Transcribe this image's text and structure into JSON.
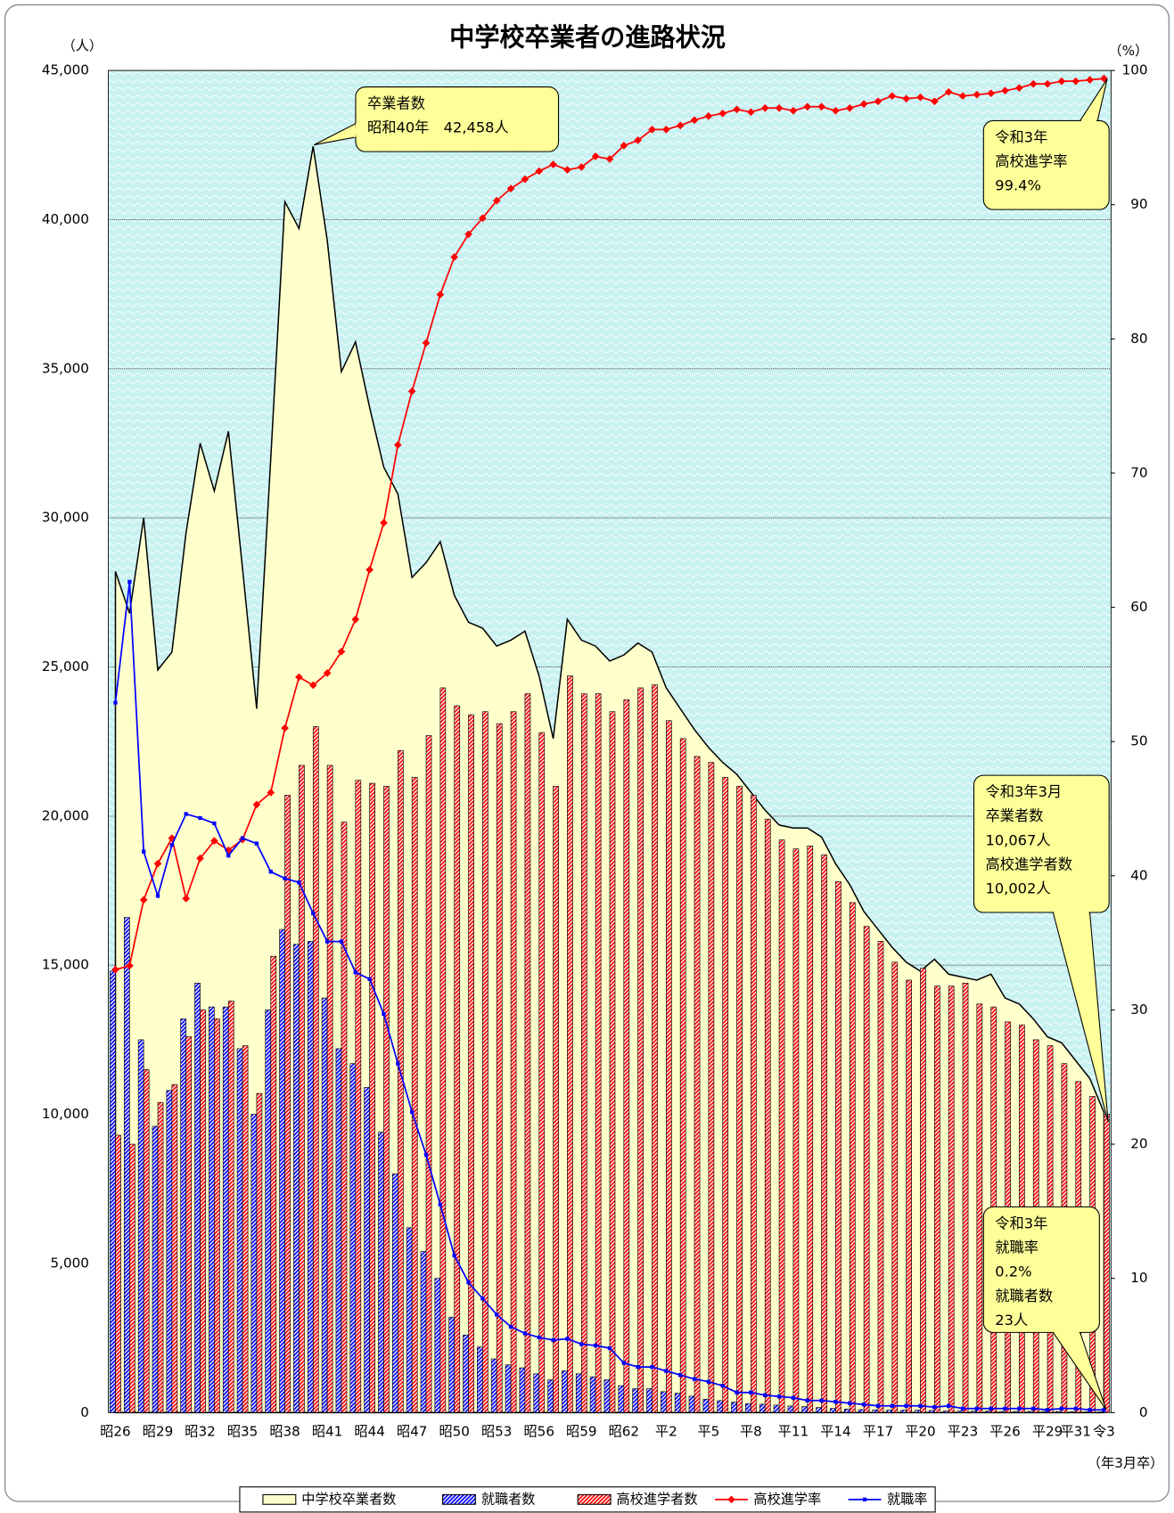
{
  "chart_data": {
    "type": "combo",
    "title": "中学校卒業者の進路状況",
    "y_label": "（人）",
    "y2_label": "（%）",
    "x_note": "（年3月卒）",
    "categories": [
      "昭26",
      null,
      null,
      "昭29",
      null,
      null,
      "昭32",
      null,
      null,
      "昭35",
      null,
      null,
      "昭38",
      null,
      null,
      "昭41",
      null,
      null,
      "昭44",
      null,
      null,
      "昭47",
      null,
      null,
      "昭50",
      null,
      null,
      "昭53",
      null,
      null,
      "昭56",
      null,
      null,
      "昭59",
      null,
      null,
      "昭62",
      null,
      null,
      "平2",
      null,
      null,
      "平5",
      null,
      null,
      "平8",
      null,
      null,
      "平11",
      null,
      null,
      "平14",
      null,
      null,
      "平17",
      null,
      null,
      "平20",
      null,
      null,
      "平23",
      null,
      null,
      "平26",
      null,
      null,
      "平29",
      null,
      "平31",
      null,
      "令3"
    ],
    "series": [
      {
        "name": "中学校卒業者数",
        "type": "area",
        "color": "#ffffcc",
        "values": [
          28200,
          26800,
          30000,
          24900,
          25500,
          29500,
          32500,
          30900,
          32900,
          28300,
          23600,
          32000,
          40600,
          39700,
          42458,
          39300,
          34900,
          35900,
          33700,
          31700,
          30800,
          28000,
          28500,
          29200,
          27400,
          26500,
          26300,
          25700,
          25900,
          26200,
          24700,
          22600,
          26600,
          25900,
          25700,
          25200,
          25400,
          25800,
          25500,
          24300,
          23600,
          22900,
          22300,
          21800,
          21400,
          20800,
          20200,
          19700,
          19600,
          19600,
          19300,
          18400,
          17700,
          16800,
          16200,
          15600,
          15100,
          14800,
          15200,
          14700,
          14600,
          14500,
          14700,
          13900,
          13700,
          13200,
          12600,
          12400,
          11800,
          11200,
          10067
        ]
      },
      {
        "name": "就職者数",
        "type": "bar",
        "color": "#0000ff",
        "values": [
          14800,
          16600,
          12500,
          9600,
          10800,
          13200,
          14400,
          13600,
          13600,
          12200,
          10000,
          13500,
          16200,
          15700,
          15800,
          13900,
          12200,
          11700,
          10900,
          9400,
          8000,
          6200,
          5400,
          4500,
          3200,
          2600,
          2200,
          1800,
          1600,
          1500,
          1300,
          1100,
          1400,
          1300,
          1200,
          1100,
          900,
          800,
          800,
          700,
          650,
          550,
          450,
          400,
          350,
          300,
          280,
          250,
          220,
          200,
          170,
          140,
          120,
          100,
          90,
          80,
          80,
          80,
          70,
          50,
          50,
          50,
          50,
          40,
          40,
          40,
          40,
          40,
          30,
          30,
          23
        ]
      },
      {
        "name": "高校進学者数",
        "type": "bar",
        "color": "#ff0000",
        "values": [
          9300,
          9000,
          11500,
          10400,
          11000,
          12600,
          13500,
          13200,
          13800,
          12300,
          10700,
          15300,
          20700,
          21700,
          23000,
          21700,
          19800,
          21200,
          21100,
          21000,
          22200,
          21300,
          22700,
          24300,
          23700,
          23400,
          23500,
          23100,
          23500,
          24100,
          22800,
          21000,
          24700,
          24100,
          24100,
          23500,
          23900,
          24300,
          24400,
          23200,
          22600,
          22000,
          21800,
          21300,
          21000,
          20700,
          19900,
          19200,
          18900,
          19000,
          18700,
          17800,
          17100,
          16300,
          15800,
          15100,
          14500,
          14900,
          14300,
          14300,
          14400,
          13700,
          13600,
          13100,
          13000,
          12500,
          12300,
          11700,
          11100,
          10600,
          10002
        ]
      },
      {
        "name": "高校進学率",
        "type": "line",
        "axis": "y2",
        "marker": "diamond",
        "color": "#ff0000",
        "values": [
          33.0,
          33.3,
          38.2,
          40.9,
          42.8,
          38.3,
          41.3,
          42.6,
          41.9,
          42.7,
          45.3,
          46.2,
          51.0,
          54.8,
          54.2,
          55.1,
          56.7,
          59.1,
          62.8,
          66.3,
          72.1,
          76.1,
          79.7,
          83.3,
          86.1,
          87.8,
          89.0,
          90.3,
          91.2,
          91.9,
          92.5,
          93.0,
          92.6,
          92.8,
          93.6,
          93.4,
          94.4,
          94.8,
          95.6,
          95.6,
          95.9,
          96.3,
          96.6,
          96.8,
          97.1,
          96.9,
          97.2,
          97.2,
          97.0,
          97.3,
          97.3,
          97.0,
          97.2,
          97.5,
          97.7,
          98.1,
          97.9,
          98.0,
          97.7,
          98.4,
          98.1,
          98.2,
          98.3,
          98.5,
          98.7,
          99.0,
          99.0,
          99.2,
          99.2,
          99.3,
          99.4
        ]
      },
      {
        "name": "就職率",
        "type": "line",
        "axis": "y2",
        "marker": "square",
        "color": "#0000ff",
        "values": [
          52.9,
          61.9,
          41.8,
          38.5,
          42.3,
          44.6,
          44.3,
          43.9,
          41.5,
          42.8,
          42.4,
          40.3,
          39.8,
          39.5,
          37.2,
          35.1,
          35.1,
          32.8,
          32.3,
          29.7,
          26.0,
          22.4,
          19.2,
          15.5,
          11.7,
          9.7,
          8.5,
          7.3,
          6.4,
          5.9,
          5.6,
          5.4,
          5.5,
          5.1,
          5.0,
          4.8,
          3.7,
          3.4,
          3.4,
          3.1,
          2.8,
          2.5,
          2.3,
          2.0,
          1.5,
          1.5,
          1.3,
          1.2,
          1.1,
          0.9,
          0.9,
          0.8,
          0.7,
          0.6,
          0.5,
          0.5,
          0.5,
          0.5,
          0.4,
          0.5,
          0.3,
          0.3,
          0.3,
          0.3,
          0.3,
          0.3,
          0.2,
          0.3,
          0.3,
          0.2,
          0.2
        ]
      }
    ],
    "ylim": [
      0,
      45000
    ],
    "yticks": [
      0,
      {
        "value": 5000,
        "label": "5,000"
      },
      {
        "value": 10000,
        "label": "10,000"
      },
      {
        "value": 15000,
        "label": "15,000"
      },
      {
        "value": 20000,
        "label": "20,000"
      },
      {
        "value": 25000,
        "label": "25,000"
      },
      {
        "value": 30000,
        "label": "30,000"
      },
      {
        "value": 35000,
        "label": "35,000"
      },
      {
        "value": 40000,
        "label": "40,000"
      },
      {
        "value": 45000,
        "label": "45,000"
      }
    ],
    "y2lim": [
      0,
      100
    ],
    "y2ticks": [
      0,
      10,
      20,
      30,
      40,
      50,
      60,
      70,
      80,
      90,
      100
    ],
    "grid": true,
    "legend": "bottom",
    "annotations": [
      {
        "lines": [
          "卒業者数",
          "昭和40年　42,458人"
        ]
      },
      {
        "lines": [
          "令和3年",
          "高校進学率",
          "99.4%"
        ]
      },
      {
        "lines": [
          "令和3年3月",
          "卒業者数",
          "10,067人",
          "高校進学者数",
          "10,002人"
        ]
      },
      {
        "lines": [
          "令和3年",
          "就職率",
          "0.2%",
          "就職者数",
          "23人"
        ]
      }
    ]
  }
}
